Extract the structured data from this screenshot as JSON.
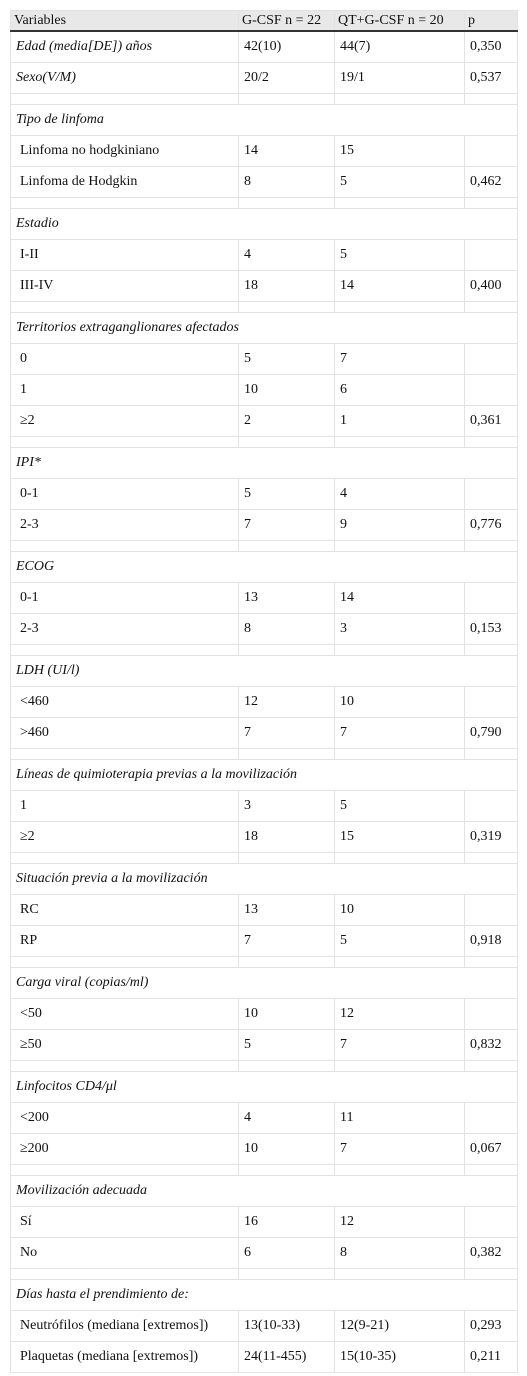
{
  "table": {
    "header": [
      "Variables",
      "G-CSF n = 22",
      "QT+G-CSF n = 20",
      "p"
    ],
    "rows": [
      {
        "label": "Edad (media[DE]) años",
        "g_csf": "42(10)",
        "qt_g_csf": "44(7)",
        "p": "0,350"
      },
      {
        "label": "Sexo(V/M)",
        "g_csf": "20/2",
        "qt_g_csf": "19/1",
        "p": "0,537"
      }
    ],
    "groups": [
      {
        "title": "Tipo de linfoma",
        "rows": [
          {
            "label": "Linfoma no hodgkiniano",
            "g_csf": "14",
            "qt_g_csf": "15"
          },
          {
            "label": "Linfoma de Hodgkin",
            "g_csf": "8",
            "qt_g_csf": "5",
            "p": "0,462"
          }
        ]
      },
      {
        "title": "Estadio",
        "rows": [
          {
            "label": "I-II",
            "g_csf": "4",
            "qt_g_csf": "5"
          },
          {
            "label": "III-IV",
            "g_csf": "18",
            "qt_g_csf": "14",
            "p": "0,400"
          }
        ]
      },
      {
        "title": "Territorios extraganglionares afectados",
        "rows": [
          {
            "label": "0",
            "g_csf": "5",
            "qt_g_csf": "7"
          },
          {
            "label": "1",
            "g_csf": "10",
            "qt_g_csf": "6"
          },
          {
            "label": "≥2",
            "g_csf": "2",
            "qt_g_csf": "1",
            "p": "0,361"
          }
        ]
      },
      {
        "title": "IPI*",
        "rows": [
          {
            "label": "0-1",
            "g_csf": "5",
            "qt_g_csf": "4"
          },
          {
            "label": "2-3",
            "g_csf": "7",
            "qt_g_csf": "9",
            "p": "0,776"
          }
        ]
      },
      {
        "title": "ECOG",
        "rows": [
          {
            "label": "0-1",
            "g_csf": "13",
            "qt_g_csf": "14"
          },
          {
            "label": "2-3",
            "g_csf": "8",
            "qt_g_csf": "3",
            "p": "0,153"
          }
        ]
      },
      {
        "title": "LDH (UI/l)",
        "rows": [
          {
            "label": "<460",
            "g_csf": "12",
            "qt_g_csf": "10"
          },
          {
            "label": ">460",
            "g_csf": "7",
            "qt_g_csf": "7",
            "p": "0,790"
          }
        ]
      },
      {
        "title": "Líneas de quimioterapia previas a la movilización",
        "rows": [
          {
            "label": "1",
            "g_csf": "3",
            "qt_g_csf": "5"
          },
          {
            "label": "≥2",
            "g_csf": "18",
            "qt_g_csf": "15",
            "p": "0,319"
          }
        ]
      },
      {
        "title": "Situación previa a la movilización",
        "rows": [
          {
            "label": "RC",
            "g_csf": "13",
            "qt_g_csf": "10"
          },
          {
            "label": "RP",
            "g_csf": "7",
            "qt_g_csf": "5",
            "p": "0,918"
          }
        ]
      },
      {
        "title": "Carga viral (copias/ml)",
        "rows": [
          {
            "label": "<50",
            "g_csf": "10",
            "qt_g_csf": "12"
          },
          {
            "label": "≥50",
            "g_csf": "5",
            "qt_g_csf": "7",
            "p": "0,832"
          }
        ]
      },
      {
        "title": "Linfocitos CD4/μl",
        "rows": [
          {
            "label": "<200",
            "g_csf": "4",
            "qt_g_csf": "11"
          },
          {
            "label": "≥200",
            "g_csf": "10",
            "qt_g_csf": "7",
            "p": "0,067"
          }
        ]
      },
      {
        "title": "Movilización adecuada",
        "rows": [
          {
            "label": "Sí",
            "g_csf": "16",
            "qt_g_csf": "12"
          },
          {
            "label": "No",
            "g_csf": "6",
            "qt_g_csf": "8",
            "p": "0,382"
          }
        ]
      },
      {
        "title": "Días hasta el prendimiento de:",
        "rows": [
          {
            "label": "Neutrófilos (mediana [extremos])",
            "g_csf": "13(10-33)",
            "qt_g_csf": "12(9-21)",
            "p": "0,293"
          },
          {
            "label": "Plaquetas (mediana [extremos])",
            "g_csf": "24(11-455)",
            "qt_g_csf": "15(10-35)",
            "p": "0,211"
          }
        ]
      }
    ]
  }
}
